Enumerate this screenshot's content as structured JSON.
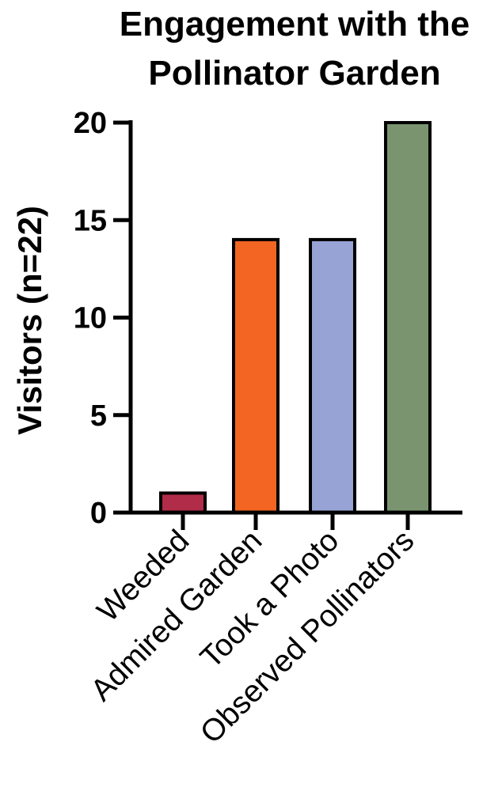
{
  "chart_data": {
    "type": "bar",
    "title_lines": [
      "Engagement with the",
      "Pollinator Garden"
    ],
    "ylabel": "Visitors (n=22)",
    "xlabel": "",
    "categories": [
      "Weeded",
      "Admired Garden",
      "Took a Photo",
      "Observed Pollinators"
    ],
    "values": [
      1,
      14,
      14,
      20
    ],
    "colors": [
      "#b02c48",
      "#f26522",
      "#97a3d4",
      "#7a9470"
    ],
    "ylim": [
      0,
      20
    ],
    "yticks": [
      "0",
      "5",
      "10",
      "15",
      "20"
    ],
    "grid": false,
    "legend": "none"
  }
}
